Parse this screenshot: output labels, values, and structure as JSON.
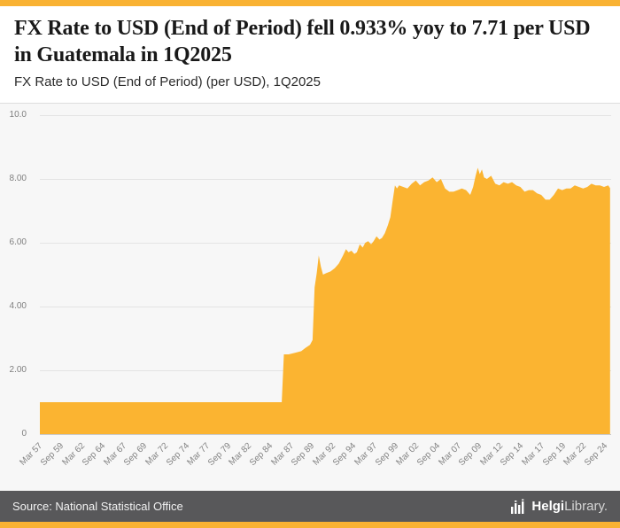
{
  "header": {
    "title": "FX Rate to USD (End of Period) fell 0.933% yoy to 7.71 per USD in Guatemala in 1Q2025",
    "subtitle": "FX Rate to USD (End of Period) (per USD), 1Q2025"
  },
  "footer": {
    "source": "Source: National Statistical Office",
    "logo_text_bold": "Helgi",
    "logo_text_light": "Library."
  },
  "colors": {
    "accent": "#F9B233",
    "chart_fill": "#FBB431",
    "chart_bg": "#F7F7F7",
    "grid": "#E4E4E4",
    "footer_bg": "#58585A"
  },
  "chart_data": {
    "type": "area",
    "title": "FX Rate to USD (End of Period) (per USD), 1Q2025",
    "xlabel": "",
    "ylabel": "",
    "ylim": [
      0,
      10
    ],
    "x_range": [
      1957.0,
      2025.3
    ],
    "grid": true,
    "legend": "none",
    "y_ticks": [
      {
        "value": 0,
        "label": "0"
      },
      {
        "value": 2,
        "label": "2.00"
      },
      {
        "value": 4,
        "label": "4.00"
      },
      {
        "value": 6,
        "label": "6.00"
      },
      {
        "value": 8,
        "label": "8.00"
      },
      {
        "value": 10,
        "label": "10.0"
      }
    ],
    "x_tick_start": 1957.25,
    "x_tick_step": 2.5,
    "x_tick_labels": [
      "Mar 57",
      "Sep 59",
      "Mar 62",
      "Sep 64",
      "Mar 67",
      "Sep 69",
      "Mar 72",
      "Sep 74",
      "Mar 77",
      "Sep 79",
      "Mar 82",
      "Sep 84",
      "Mar 87",
      "Sep 89",
      "Mar 92",
      "Sep 94",
      "Mar 97",
      "Sep 99",
      "Mar 02",
      "Sep 04",
      "Mar 07",
      "Sep 09",
      "Mar 12",
      "Sep 14",
      "Mar 17",
      "Sep 19",
      "Mar 22",
      "Sep 24"
    ],
    "series_name": "FX Rate to USD (End of Period), per USD",
    "last_value": 7.71,
    "points": [
      [
        1957.0,
        1.0
      ],
      [
        1985.92,
        1.0
      ],
      [
        1986.17,
        2.5
      ],
      [
        1986.75,
        2.5
      ],
      [
        1987.5,
        2.55
      ],
      [
        1988.25,
        2.6
      ],
      [
        1988.75,
        2.7
      ],
      [
        1989.3,
        2.8
      ],
      [
        1989.6,
        2.95
      ],
      [
        1989.85,
        4.6
      ],
      [
        1990.1,
        5.05
      ],
      [
        1990.35,
        5.6
      ],
      [
        1990.6,
        5.25
      ],
      [
        1990.85,
        5.0
      ],
      [
        1991.25,
        5.05
      ],
      [
        1991.75,
        5.1
      ],
      [
        1992.25,
        5.2
      ],
      [
        1992.75,
        5.35
      ],
      [
        1993.25,
        5.6
      ],
      [
        1993.6,
        5.8
      ],
      [
        1993.9,
        5.7
      ],
      [
        1994.25,
        5.75
      ],
      [
        1994.6,
        5.65
      ],
      [
        1994.9,
        5.7
      ],
      [
        1995.25,
        5.95
      ],
      [
        1995.6,
        5.85
      ],
      [
        1995.9,
        6.0
      ],
      [
        1996.25,
        6.05
      ],
      [
        1996.6,
        5.95
      ],
      [
        1996.9,
        6.05
      ],
      [
        1997.25,
        6.2
      ],
      [
        1997.6,
        6.1
      ],
      [
        1997.9,
        6.15
      ],
      [
        1998.25,
        6.3
      ],
      [
        1998.6,
        6.55
      ],
      [
        1998.9,
        6.8
      ],
      [
        1999.2,
        7.35
      ],
      [
        1999.45,
        7.8
      ],
      [
        1999.7,
        7.7
      ],
      [
        1999.95,
        7.8
      ],
      [
        2000.45,
        7.75
      ],
      [
        2000.95,
        7.7
      ],
      [
        2001.45,
        7.85
      ],
      [
        2001.95,
        7.95
      ],
      [
        2002.45,
        7.8
      ],
      [
        2002.95,
        7.9
      ],
      [
        2003.45,
        7.95
      ],
      [
        2003.95,
        8.05
      ],
      [
        2004.45,
        7.9
      ],
      [
        2004.95,
        8.0
      ],
      [
        2005.45,
        7.7
      ],
      [
        2005.95,
        7.6
      ],
      [
        2006.45,
        7.6
      ],
      [
        2006.95,
        7.65
      ],
      [
        2007.45,
        7.7
      ],
      [
        2007.95,
        7.65
      ],
      [
        2008.45,
        7.5
      ],
      [
        2008.8,
        7.75
      ],
      [
        2009.1,
        8.1
      ],
      [
        2009.35,
        8.35
      ],
      [
        2009.6,
        8.15
      ],
      [
        2009.85,
        8.3
      ],
      [
        2010.1,
        8.05
      ],
      [
        2010.45,
        8.0
      ],
      [
        2010.95,
        8.1
      ],
      [
        2011.45,
        7.85
      ],
      [
        2011.95,
        7.8
      ],
      [
        2012.45,
        7.9
      ],
      [
        2012.95,
        7.85
      ],
      [
        2013.45,
        7.9
      ],
      [
        2013.95,
        7.8
      ],
      [
        2014.45,
        7.75
      ],
      [
        2014.95,
        7.6
      ],
      [
        2015.45,
        7.65
      ],
      [
        2015.95,
        7.65
      ],
      [
        2016.45,
        7.55
      ],
      [
        2016.95,
        7.5
      ],
      [
        2017.45,
        7.35
      ],
      [
        2017.95,
        7.35
      ],
      [
        2018.45,
        7.5
      ],
      [
        2018.95,
        7.7
      ],
      [
        2019.45,
        7.65
      ],
      [
        2019.95,
        7.7
      ],
      [
        2020.45,
        7.7
      ],
      [
        2020.95,
        7.8
      ],
      [
        2021.45,
        7.75
      ],
      [
        2021.95,
        7.7
      ],
      [
        2022.45,
        7.75
      ],
      [
        2022.95,
        7.85
      ],
      [
        2023.45,
        7.8
      ],
      [
        2023.95,
        7.8
      ],
      [
        2024.45,
        7.75
      ],
      [
        2024.95,
        7.8
      ],
      [
        2025.17,
        7.71
      ]
    ]
  }
}
